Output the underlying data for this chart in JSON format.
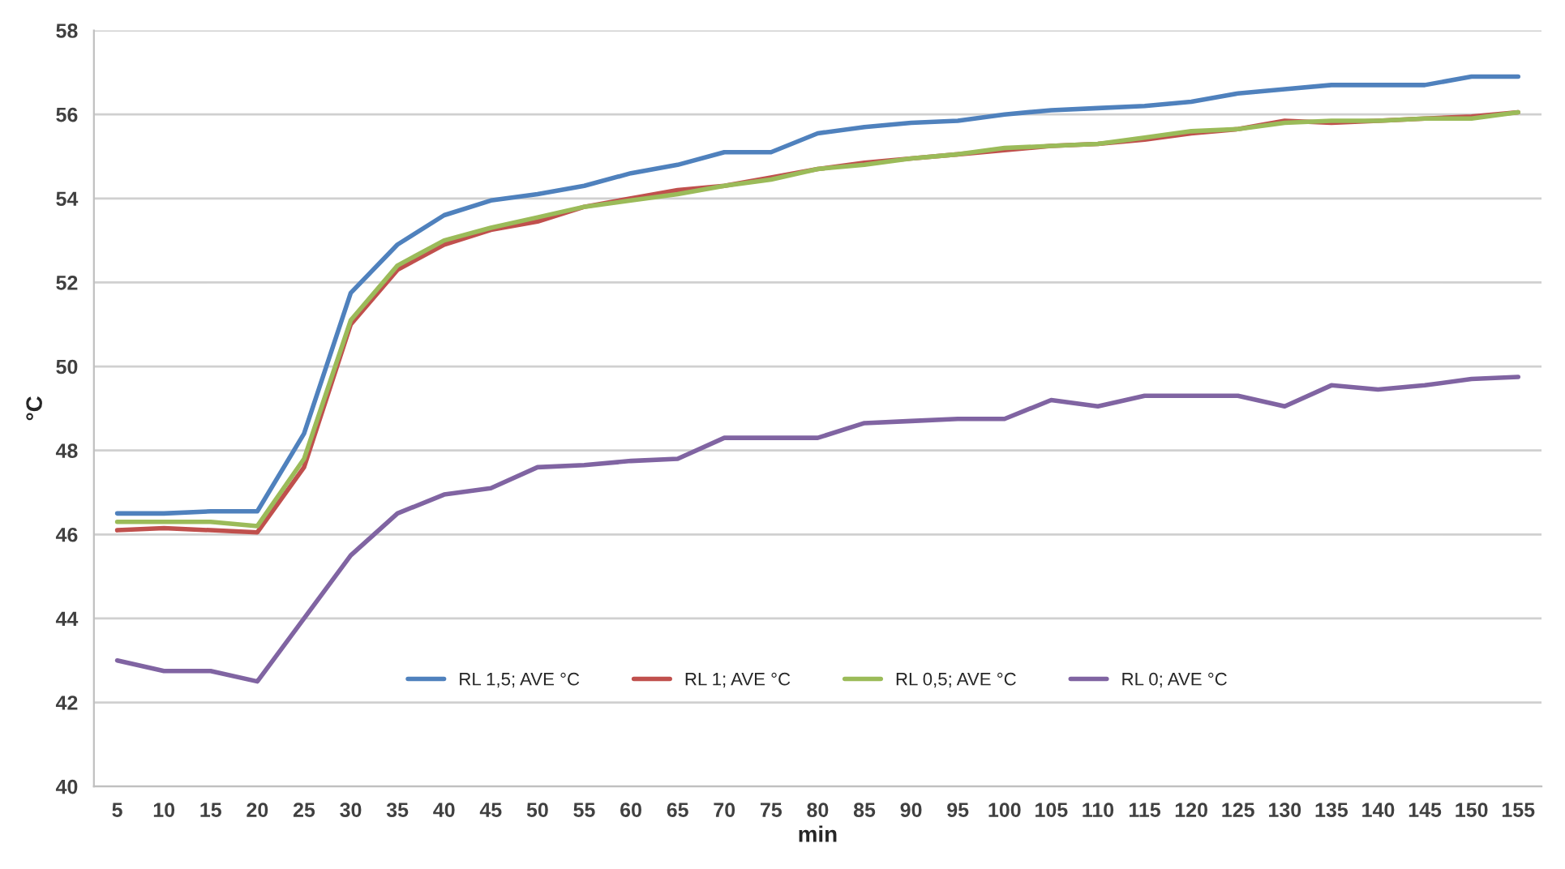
{
  "chart_data": {
    "type": "line",
    "xlabel": "min",
    "ylabel": "°C",
    "categories": [
      "5",
      "10",
      "15",
      "20",
      "25",
      "30",
      "35",
      "40",
      "45",
      "50",
      "55",
      "60",
      "65",
      "70",
      "75",
      "80",
      "85",
      "90",
      "95",
      "100",
      "105",
      "110",
      "115",
      "120",
      "125",
      "130",
      "135",
      "140",
      "145",
      "150",
      "155"
    ],
    "series": [
      {
        "name": "RL 1,5; AVE °C",
        "color": "#4f81bd",
        "values": [
          46.5,
          46.5,
          46.55,
          46.55,
          48.4,
          51.75,
          52.9,
          53.6,
          53.95,
          54.1,
          54.3,
          54.6,
          54.8,
          55.1,
          55.1,
          55.55,
          55.7,
          55.8,
          55.85,
          56.0,
          56.1,
          56.15,
          56.2,
          56.3,
          56.5,
          56.6,
          56.7,
          56.7,
          56.7,
          56.9,
          56.9
        ]
      },
      {
        "name": "RL 1; AVE °C",
        "color": "#c0504d",
        "values": [
          46.1,
          46.15,
          46.1,
          46.05,
          47.6,
          51.0,
          52.3,
          52.9,
          53.25,
          53.45,
          53.8,
          54.0,
          54.2,
          54.3,
          54.5,
          54.7,
          54.85,
          54.95,
          55.05,
          55.15,
          55.25,
          55.3,
          55.4,
          55.55,
          55.65,
          55.85,
          55.8,
          55.85,
          55.9,
          55.95,
          56.05
        ]
      },
      {
        "name": "RL 0,5; AVE °C",
        "color": "#9bbb59",
        "values": [
          46.3,
          46.3,
          46.3,
          46.2,
          47.8,
          51.1,
          52.4,
          53.0,
          53.3,
          53.55,
          53.8,
          53.95,
          54.1,
          54.3,
          54.45,
          54.7,
          54.8,
          54.95,
          55.05,
          55.2,
          55.25,
          55.3,
          55.45,
          55.6,
          55.65,
          55.8,
          55.85,
          55.85,
          55.9,
          55.9,
          56.05
        ]
      },
      {
        "name": "RL 0; AVE °C",
        "color": "#8064a2",
        "values": [
          43.0,
          42.75,
          42.75,
          42.5,
          44.0,
          45.5,
          46.5,
          46.95,
          47.1,
          47.6,
          47.65,
          47.75,
          47.8,
          48.3,
          48.3,
          48.3,
          48.65,
          48.7,
          48.75,
          48.75,
          49.2,
          49.05,
          49.3,
          49.3,
          49.3,
          49.05,
          49.55,
          49.45,
          49.55,
          49.7,
          49.75
        ]
      }
    ],
    "ylim": [
      40,
      58
    ],
    "yticks": [
      40,
      42,
      44,
      46,
      48,
      50,
      52,
      54,
      56,
      58
    ],
    "grid": "y",
    "legend": "center",
    "marker": "none",
    "line_style": "solid"
  }
}
